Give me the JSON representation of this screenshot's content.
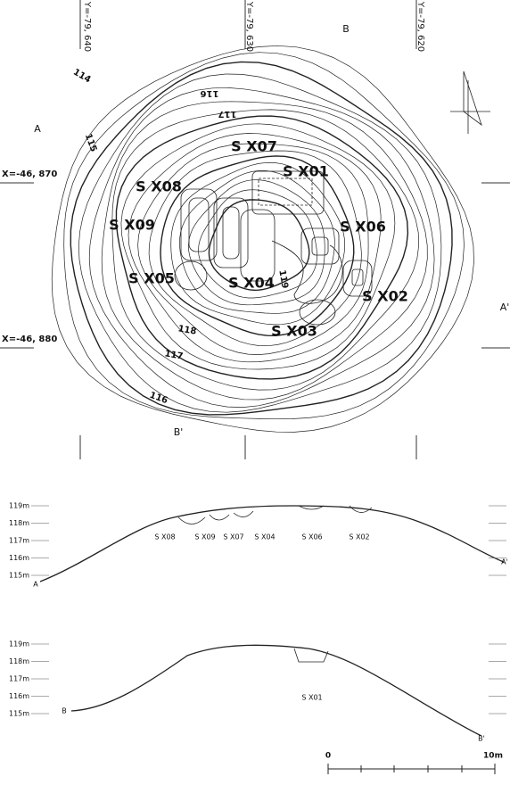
{
  "grid_labels": {
    "y": [
      "Y=-79, 640",
      "Y=-79, 630",
      "Y=-79, 620"
    ],
    "x": [
      "X=-46, 870",
      "X=-46, 880"
    ]
  },
  "contour_labels": [
    "114",
    "115",
    "116",
    "117",
    "119",
    "118",
    "117",
    "116"
  ],
  "features": [
    "S X07",
    "S X01",
    "S X08",
    "S X09",
    "S X06",
    "S X05",
    "S X04",
    "S X02",
    "S X03"
  ],
  "section_lines": [
    "A",
    "A'",
    "B",
    "B'"
  ],
  "sections": [
    {
      "start": "A",
      "end": "A'",
      "elevations": [
        "119m",
        "118m",
        "117m",
        "116m",
        "115m"
      ],
      "features": [
        "S X08",
        "S X09",
        "S X07",
        "S X04",
        "S X06",
        "S X02"
      ]
    },
    {
      "start": "B",
      "end": "B'",
      "elevations": [
        "119m",
        "118m",
        "117m",
        "116m",
        "115m"
      ],
      "features": [
        "S X01"
      ]
    }
  ],
  "scale": {
    "start": "0",
    "end": "10m"
  }
}
